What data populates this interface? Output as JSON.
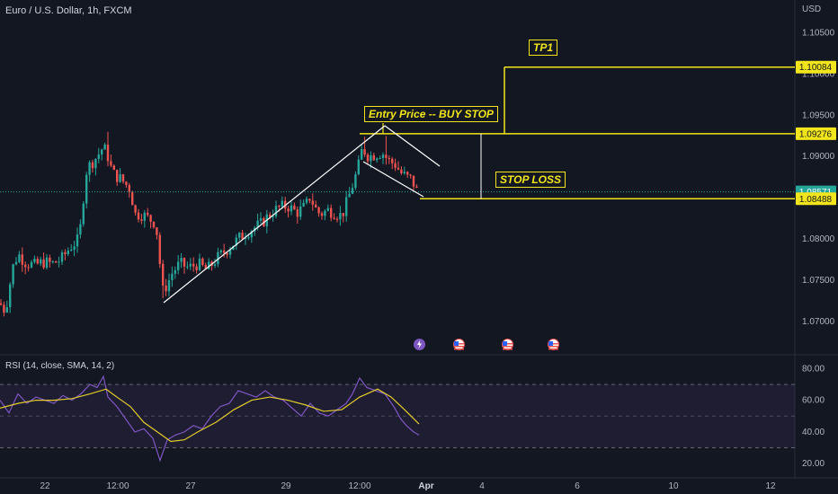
{
  "title": "Euro / U.S. Dollar, 1h, FXCM",
  "currency": "USD",
  "rsi_title": "RSI (14, close, SMA, 14, 2)",
  "colors": {
    "background": "#131722",
    "up": "#26a69a",
    "down": "#ef5350",
    "annotation": "#f2e51b",
    "rsi_line": "#7e57c2",
    "rsi_ma": "#e3cc2b",
    "trendline": "#ffffff",
    "text": "#b2b5be"
  },
  "annotations": {
    "tp1": "TP1",
    "entry": "Entry Price -- BUY STOP",
    "stop": "STOP LOSS"
  },
  "events": [
    "lightning-event-icon",
    "us-flag-event-icon",
    "us-flag-event-icon",
    "us-flag-event-icon"
  ],
  "chart_data": [
    {
      "type": "candlestick",
      "title": "Euro / U.S. Dollar, 1h, FXCM",
      "xlabel": "",
      "ylabel": "USD",
      "x_ticks": [
        "22",
        "12:00",
        "27",
        "29",
        "12:00",
        "Apr",
        "4",
        "6",
        "10",
        "12"
      ],
      "y_ticks": [
        1.07,
        1.075,
        1.08,
        1.085,
        1.09,
        1.095,
        1.1,
        1.105
      ],
      "y_tick_labels": [
        "1.07000",
        "1.07500",
        "1.08000",
        "1.08500",
        "1.09000",
        "1.09500",
        "1.10000",
        "1.10500"
      ],
      "ylim": [
        1.0665,
        1.1068
      ],
      "price_lines": [
        {
          "label": "1.10084",
          "value": 1.10084,
          "role": "take-profit"
        },
        {
          "label": "1.09276",
          "value": 1.09276,
          "role": "entry"
        },
        {
          "label": "1.08571",
          "value": 1.08571,
          "role": "current-price"
        },
        {
          "label": "1.08488",
          "value": 1.08488,
          "role": "stop-loss"
        }
      ],
      "close_path": [
        [
          0,
          1.0722
        ],
        [
          6,
          1.0712
        ],
        [
          14,
          1.0765
        ],
        [
          20,
          1.0782
        ],
        [
          28,
          1.0772
        ],
        [
          38,
          1.0768
        ],
        [
          48,
          1.0772
        ],
        [
          58,
          1.077
        ],
        [
          68,
          1.0775
        ],
        [
          78,
          1.079
        ],
        [
          88,
          1.08
        ],
        [
          92,
          1.084
        ],
        [
          95,
          1.088
        ],
        [
          100,
          1.089
        ],
        [
          108,
          1.09
        ],
        [
          115,
          1.0912
        ],
        [
          120,
          1.09
        ],
        [
          125,
          1.088
        ],
        [
          135,
          1.0872
        ],
        [
          145,
          1.086
        ],
        [
          150,
          1.083
        ],
        [
          158,
          1.083
        ],
        [
          165,
          1.0825
        ],
        [
          172,
          1.082
        ],
        [
          176,
          1.08
        ],
        [
          180,
          1.0735
        ],
        [
          186,
          1.0745
        ],
        [
          192,
          1.076
        ],
        [
          200,
          1.077
        ],
        [
          210,
          1.0765
        ],
        [
          220,
          1.077
        ],
        [
          230,
          1.0762
        ],
        [
          240,
          1.0775
        ],
        [
          250,
          1.0785
        ],
        [
          260,
          1.0795
        ],
        [
          270,
          1.0805
        ],
        [
          280,
          1.0812
        ],
        [
          290,
          1.0818
        ],
        [
          300,
          1.083
        ],
        [
          310,
          1.0838
        ],
        [
          320,
          1.084
        ],
        [
          330,
          1.0832
        ],
        [
          340,
          1.084
        ],
        [
          345,
          1.0852
        ],
        [
          350,
          1.0838
        ],
        [
          356,
          1.083
        ],
        [
          365,
          1.0835
        ],
        [
          372,
          1.0832
        ],
        [
          380,
          1.0828
        ],
        [
          386,
          1.0845
        ],
        [
          392,
          1.0865
        ],
        [
          398,
          1.0885
        ],
        [
          403,
          1.091
        ],
        [
          410,
          1.09
        ],
        [
          418,
          1.0903
        ],
        [
          425,
          1.0905
        ],
        [
          432,
          1.0895
        ],
        [
          440,
          1.089
        ],
        [
          446,
          1.088
        ],
        [
          452,
          1.0875
        ],
        [
          458,
          1.0872
        ],
        [
          464,
          1.0857
        ]
      ],
      "high_points": [
        [
          119,
          1.093
        ],
        [
          405,
          1.0924
        ],
        [
          428,
          1.0925
        ]
      ],
      "low_points": [
        [
          8,
          1.0712
        ],
        [
          180,
          1.0728
        ]
      ]
    },
    {
      "type": "line",
      "title": "RSI (14, close, SMA, 14, 2)",
      "xlabel": "",
      "ylabel": "",
      "y_ticks": [
        20,
        40,
        60,
        80
      ],
      "y_tick_labels": [
        "20.00",
        "40.00",
        "60.00",
        "80.00"
      ],
      "ylim": [
        15,
        83
      ],
      "bands": [
        70,
        50,
        30
      ],
      "series": [
        {
          "role": "rsi",
          "values": [
            [
              0,
              60
            ],
            [
              10,
              52
            ],
            [
              20,
              64
            ],
            [
              30,
              58
            ],
            [
              40,
              62
            ],
            [
              50,
              60
            ],
            [
              60,
              58
            ],
            [
              70,
              63
            ],
            [
              80,
              60
            ],
            [
              90,
              64
            ],
            [
              100,
              70
            ],
            [
              108,
              68
            ],
            [
              115,
              75
            ],
            [
              120,
              62
            ],
            [
              130,
              56
            ],
            [
              140,
              48
            ],
            [
              150,
              40
            ],
            [
              160,
              42
            ],
            [
              170,
              36
            ],
            [
              178,
              22
            ],
            [
              186,
              35
            ],
            [
              195,
              38
            ],
            [
              205,
              40
            ],
            [
              215,
              44
            ],
            [
              225,
              42
            ],
            [
              235,
              50
            ],
            [
              245,
              56
            ],
            [
              255,
              58
            ],
            [
              265,
              66
            ],
            [
              275,
              64
            ],
            [
              285,
              62
            ],
            [
              295,
              66
            ],
            [
              305,
              62
            ],
            [
              315,
              60
            ],
            [
              325,
              55
            ],
            [
              335,
              50
            ],
            [
              345,
              58
            ],
            [
              355,
              52
            ],
            [
              365,
              50
            ],
            [
              375,
              54
            ],
            [
              385,
              58
            ],
            [
              392,
              64
            ],
            [
              400,
              74
            ],
            [
              408,
              68
            ],
            [
              418,
              66
            ],
            [
              428,
              64
            ],
            [
              438,
              56
            ],
            [
              446,
              48
            ],
            [
              452,
              44
            ],
            [
              460,
              40
            ],
            [
              466,
              38
            ]
          ]
        },
        {
          "role": "rsi-sma",
          "values": [
            [
              0,
              55
            ],
            [
              20,
              58
            ],
            [
              40,
              60
            ],
            [
              60,
              60
            ],
            [
              80,
              61
            ],
            [
              100,
              64
            ],
            [
              118,
              67
            ],
            [
              130,
              62
            ],
            [
              145,
              56
            ],
            [
              160,
              46
            ],
            [
              175,
              40
            ],
            [
              190,
              34
            ],
            [
              205,
              35
            ],
            [
              220,
              40
            ],
            [
              240,
              46
            ],
            [
              260,
              54
            ],
            [
              280,
              60
            ],
            [
              300,
              62
            ],
            [
              320,
              60
            ],
            [
              340,
              57
            ],
            [
              360,
              53
            ],
            [
              380,
              54
            ],
            [
              400,
              62
            ],
            [
              420,
              67
            ],
            [
              435,
              62
            ],
            [
              450,
              54
            ],
            [
              466,
              45
            ]
          ]
        }
      ]
    }
  ]
}
